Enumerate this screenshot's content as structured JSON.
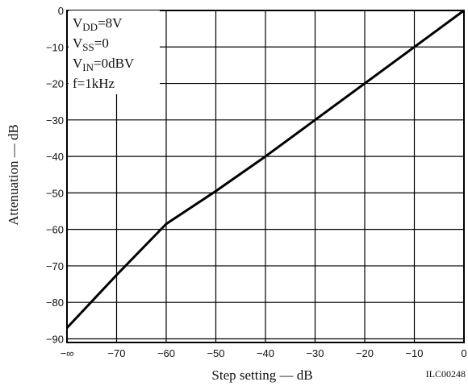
{
  "chart_data": {
    "type": "line",
    "xlabel": "Step setting — dB",
    "ylabel": "Attenuation — dB",
    "x_ticks": [
      {
        "value": -80,
        "label": "−∞"
      },
      {
        "value": -70,
        "label": "−70"
      },
      {
        "value": -60,
        "label": "−60"
      },
      {
        "value": -50,
        "label": "−50"
      },
      {
        "value": -40,
        "label": "−40"
      },
      {
        "value": -30,
        "label": "−30"
      },
      {
        "value": -20,
        "label": "−20"
      },
      {
        "value": -10,
        "label": "−10"
      },
      {
        "value": 0,
        "label": "0"
      }
    ],
    "y_ticks": [
      {
        "value": 0,
        "label": "0"
      },
      {
        "value": -10,
        "label": "−10"
      },
      {
        "value": -20,
        "label": "−20"
      },
      {
        "value": -30,
        "label": "−30"
      },
      {
        "value": -40,
        "label": "−40"
      },
      {
        "value": -50,
        "label": "−50"
      },
      {
        "value": -60,
        "label": "−60"
      },
      {
        "value": -70,
        "label": "−70"
      },
      {
        "value": -80,
        "label": "−80"
      },
      {
        "value": -90,
        "label": "−90"
      }
    ],
    "xlim": [
      -80,
      0
    ],
    "ylim": [
      -91,
      0
    ],
    "grid": true,
    "series": [
      {
        "points": [
          {
            "x": "−∞",
            "y": -87
          },
          {
            "x": -70,
            "y": -72.5
          },
          {
            "x": -60,
            "y": -58.5
          },
          {
            "x": -50,
            "y": -49.5
          },
          {
            "x": -40,
            "y": -40
          },
          {
            "x": -30,
            "y": -30
          },
          {
            "x": -20,
            "y": -20
          },
          {
            "x": -10,
            "y": -10
          },
          {
            "x": 0,
            "y": 0
          }
        ]
      }
    ],
    "annotations": {
      "conditions": [
        "VDD=8V",
        "VSS=0",
        "VIN=0dBV",
        "f=1kHz"
      ],
      "figure_ref": "ILC00248"
    }
  }
}
